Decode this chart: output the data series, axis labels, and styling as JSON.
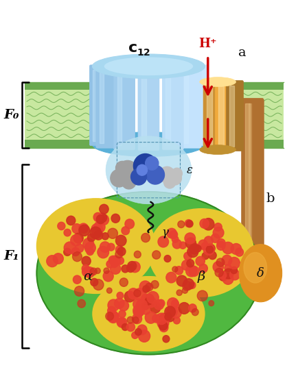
{
  "bg_color": "#ffffff",
  "fo_label": "F₀",
  "f1_label": "F₁",
  "a_label": "a",
  "b_label": "b",
  "alpha_label": "α",
  "beta_label": "β",
  "gamma_label": "γ",
  "delta_label": "δ",
  "epsilon_label": "ε",
  "hplus_label": "H⁺",
  "arrow_color": "#cc0000",
  "mem_green_light": "#c8e8a0",
  "mem_green_mid": "#b8d890",
  "mem_green_dark": "#6aaa50",
  "c12_blue_light": "#a8d8f0",
  "c12_blue_mid": "#5ab0d8",
  "c12_blue_dark": "#2880b0",
  "a_gold_light": "#f0c870",
  "a_gold_mid": "#d8a040",
  "a_gold_dark": "#b87820",
  "b_brown_light": "#d0a060",
  "b_brown_mid": "#b07030",
  "b_brown_dark": "#805010",
  "green_f1": "#50b840",
  "green_f1_dark": "#308820",
  "yellow_alpha": "#e8c830",
  "yellow_alpha_light": "#f8e060",
  "red_surface": "#d03020",
  "red_surface2": "#e84030",
  "blue_gamma": "#2040a0",
  "blue_gamma_light": "#4060c0",
  "gray_epsilon": "#a0a0a0",
  "gray_epsilon_light": "#c0c0c0",
  "delta_orange": "#e09020",
  "delta_orange_light": "#f0b040"
}
